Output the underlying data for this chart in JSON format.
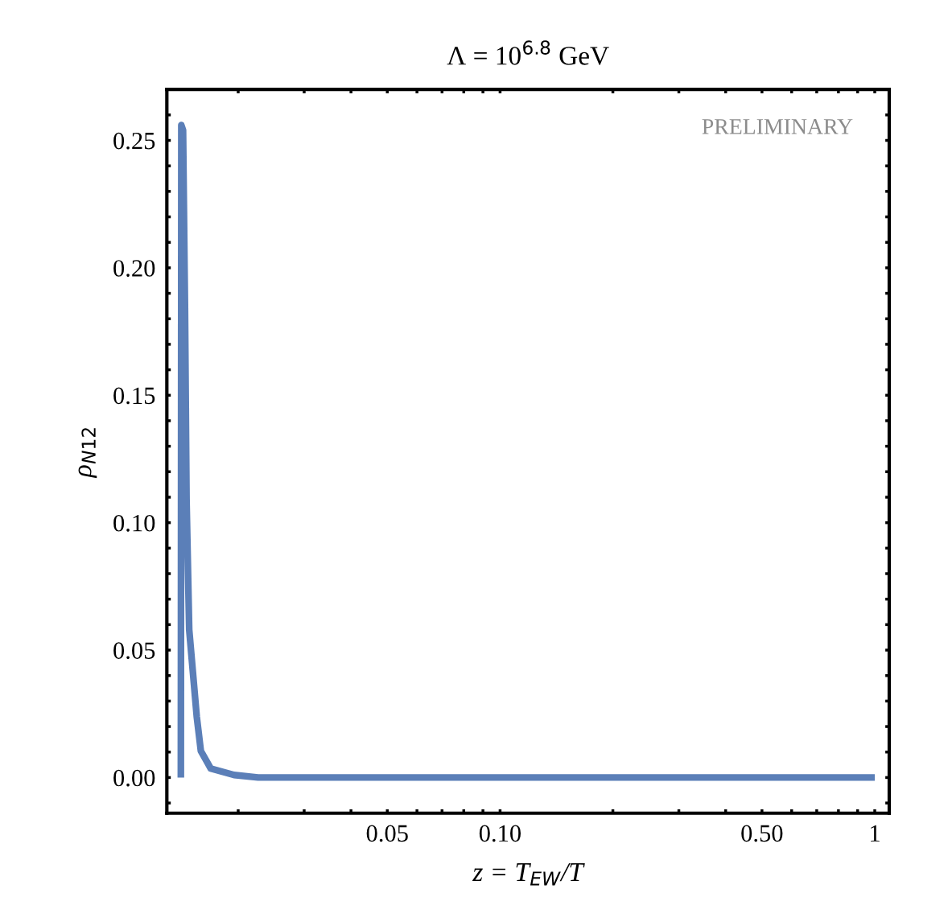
{
  "chart_data": {
    "type": "line",
    "title": "Λ = 10$^{6.8}$ GeV",
    "xlabel": "z = T$_{EW}$/T",
    "ylabel": "ρ$_{N12}$",
    "annotations": [
      "PRELIMINARY"
    ],
    "log": "x",
    "grid": false,
    "legend": false,
    "marker": "none",
    "line_style": "solid",
    "xlim": [
      0.0129,
      1.093
    ],
    "ylim": [
      -0.014,
      0.27
    ],
    "xticks": [
      {
        "value": 0.02,
        "label": null
      },
      {
        "value": 0.03,
        "label": null
      },
      {
        "value": 0.04,
        "label": null
      },
      {
        "value": 0.05,
        "label": "0.05"
      },
      {
        "value": 0.06,
        "label": null
      },
      {
        "value": 0.07,
        "label": null
      },
      {
        "value": 0.08,
        "label": null
      },
      {
        "value": 0.09,
        "label": null
      },
      {
        "value": 0.1,
        "label": "0.10"
      },
      {
        "value": 0.2,
        "label": null
      },
      {
        "value": 0.3,
        "label": null
      },
      {
        "value": 0.4,
        "label": null
      },
      {
        "value": 0.5,
        "label": "0.50"
      },
      {
        "value": 0.6,
        "label": null
      },
      {
        "value": 0.7,
        "label": null
      },
      {
        "value": 0.8,
        "label": null
      },
      {
        "value": 0.9,
        "label": null
      },
      1
    ],
    "yticks": [
      {
        "value": -0.01,
        "label": null
      },
      {
        "value": 0.0,
        "label": "0.00"
      },
      {
        "value": 0.01,
        "label": null
      },
      {
        "value": 0.02,
        "label": null
      },
      {
        "value": 0.03,
        "label": null
      },
      {
        "value": 0.04,
        "label": null
      },
      {
        "value": 0.05,
        "label": "0.05"
      },
      {
        "value": 0.06,
        "label": null
      },
      {
        "value": 0.07,
        "label": null
      },
      {
        "value": 0.08,
        "label": null
      },
      {
        "value": 0.09,
        "label": null
      },
      {
        "value": 0.1,
        "label": "0.10"
      },
      {
        "value": 0.11,
        "label": null
      },
      {
        "value": 0.12,
        "label": null
      },
      {
        "value": 0.13,
        "label": null
      },
      {
        "value": 0.14,
        "label": null
      },
      {
        "value": 0.15,
        "label": "0.15"
      },
      {
        "value": 0.16,
        "label": null
      },
      {
        "value": 0.17,
        "label": null
      },
      {
        "value": 0.18,
        "label": null
      },
      {
        "value": 0.19,
        "label": null
      },
      {
        "value": 0.2,
        "label": "0.20"
      },
      {
        "value": 0.21,
        "label": null
      },
      {
        "value": 0.22,
        "label": null
      },
      {
        "value": 0.23,
        "label": null
      },
      {
        "value": 0.24,
        "label": null
      },
      {
        "value": 0.25,
        "label": "0.25"
      },
      {
        "value": 0.26,
        "label": null
      }
    ],
    "series": [
      {
        "color": "#5b7fb8",
        "x": [
          0.01406,
          0.0141,
          0.01425,
          0.01442,
          0.01456,
          0.0148,
          0.0155,
          0.0159,
          0.0169,
          0.0195,
          0.0226,
          1.0
        ],
        "values": [
          0.0,
          0.256,
          0.254,
          0.185,
          0.109,
          0.058,
          0.024,
          0.0104,
          0.0035,
          0.001,
          0.0,
          0.0
        ]
      }
    ]
  }
}
